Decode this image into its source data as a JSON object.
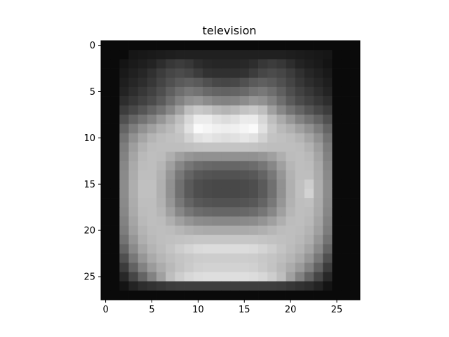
{
  "chart_data": {
    "type": "heatmap",
    "title": "television",
    "colormap": "gray",
    "xlabel": "",
    "ylabel": "",
    "x_ticks": [
      0,
      5,
      10,
      15,
      20,
      25
    ],
    "y_ticks": [
      0,
      5,
      10,
      15,
      20,
      25
    ],
    "x_tick_labels": [
      "0",
      "5",
      "10",
      "15",
      "20",
      "25"
    ],
    "y_tick_labels": [
      "0",
      "5",
      "10",
      "15",
      "20",
      "25"
    ],
    "grid": false,
    "rows": 28,
    "cols": 28,
    "values": [
      [
        10,
        10,
        10,
        10,
        10,
        10,
        10,
        10,
        10,
        10,
        10,
        10,
        10,
        10,
        10,
        10,
        10,
        10,
        10,
        10,
        10,
        10,
        10,
        10,
        10,
        10,
        10,
        10
      ],
      [
        10,
        10,
        10,
        22,
        24,
        26,
        28,
        30,
        32,
        32,
        32,
        32,
        32,
        32,
        32,
        32,
        32,
        32,
        32,
        32,
        30,
        28,
        26,
        24,
        22,
        10,
        10,
        10
      ],
      [
        10,
        10,
        20,
        26,
        30,
        35,
        45,
        55,
        60,
        55,
        45,
        40,
        38,
        38,
        38,
        40,
        45,
        55,
        60,
        55,
        45,
        35,
        30,
        26,
        20,
        10,
        10,
        10
      ],
      [
        10,
        10,
        25,
        32,
        38,
        48,
        60,
        70,
        75,
        70,
        60,
        50,
        48,
        48,
        48,
        50,
        60,
        70,
        75,
        70,
        60,
        48,
        38,
        32,
        25,
        10,
        10,
        10
      ],
      [
        10,
        10,
        30,
        38,
        45,
        55,
        68,
        80,
        90,
        95,
        90,
        80,
        72,
        70,
        72,
        80,
        90,
        95,
        90,
        80,
        68,
        55,
        45,
        38,
        30,
        10,
        10,
        10
      ],
      [
        10,
        10,
        35,
        45,
        55,
        65,
        78,
        95,
        110,
        120,
        115,
        105,
        100,
        98,
        100,
        105,
        115,
        120,
        110,
        95,
        78,
        65,
        55,
        45,
        35,
        10,
        10,
        10
      ],
      [
        10,
        10,
        45,
        55,
        65,
        75,
        90,
        110,
        130,
        145,
        150,
        140,
        132,
        130,
        132,
        140,
        150,
        145,
        130,
        110,
        90,
        75,
        65,
        55,
        45,
        10,
        10,
        10
      ],
      [
        10,
        10,
        60,
        72,
        85,
        100,
        115,
        135,
        160,
        190,
        200,
        195,
        185,
        180,
        185,
        195,
        200,
        190,
        160,
        135,
        115,
        100,
        85,
        72,
        60,
        10,
        10,
        10
      ],
      [
        10,
        10,
        80,
        100,
        115,
        130,
        150,
        170,
        190,
        215,
        235,
        235,
        225,
        220,
        225,
        235,
        235,
        215,
        190,
        170,
        150,
        130,
        115,
        100,
        80,
        10,
        10,
        10
      ],
      [
        10,
        10,
        100,
        125,
        145,
        160,
        175,
        185,
        200,
        225,
        250,
        245,
        240,
        238,
        240,
        245,
        250,
        225,
        200,
        185,
        175,
        160,
        145,
        125,
        100,
        10,
        10,
        10
      ],
      [
        10,
        10,
        115,
        145,
        165,
        180,
        188,
        192,
        195,
        210,
        225,
        230,
        225,
        222,
        225,
        230,
        225,
        210,
        195,
        192,
        188,
        180,
        165,
        145,
        115,
        10,
        10,
        10
      ],
      [
        10,
        10,
        125,
        158,
        178,
        188,
        190,
        190,
        190,
        192,
        195,
        196,
        196,
        196,
        196,
        196,
        195,
        192,
        190,
        190,
        190,
        188,
        178,
        158,
        125,
        10,
        10,
        10
      ],
      [
        10,
        10,
        130,
        165,
        185,
        190,
        188,
        175,
        160,
        150,
        145,
        145,
        145,
        145,
        145,
        145,
        145,
        150,
        160,
        175,
        188,
        190,
        185,
        165,
        130,
        10,
        10,
        10
      ],
      [
        10,
        10,
        135,
        170,
        188,
        190,
        182,
        160,
        135,
        118,
        108,
        104,
        102,
        102,
        102,
        104,
        108,
        118,
        135,
        160,
        182,
        190,
        188,
        170,
        135,
        10,
        10,
        10
      ],
      [
        10,
        10,
        138,
        172,
        190,
        190,
        178,
        150,
        120,
        100,
        88,
        84,
        82,
        82,
        82,
        84,
        88,
        100,
        120,
        150,
        178,
        190,
        190,
        172,
        138,
        10,
        10,
        10
      ],
      [
        10,
        10,
        140,
        174,
        192,
        192,
        176,
        145,
        112,
        90,
        78,
        74,
        72,
        72,
        72,
        74,
        78,
        90,
        112,
        145,
        176,
        192,
        205,
        174,
        140,
        10,
        10,
        10
      ],
      [
        10,
        10,
        140,
        174,
        192,
        192,
        176,
        145,
        112,
        90,
        78,
        74,
        72,
        72,
        72,
        74,
        78,
        90,
        112,
        145,
        176,
        192,
        210,
        174,
        140,
        10,
        10,
        10
      ],
      [
        10,
        10,
        138,
        172,
        190,
        190,
        178,
        150,
        120,
        100,
        88,
        84,
        82,
        82,
        82,
        84,
        88,
        100,
        120,
        150,
        178,
        190,
        192,
        172,
        138,
        10,
        10,
        10
      ],
      [
        10,
        10,
        135,
        170,
        188,
        190,
        182,
        160,
        135,
        118,
        108,
        104,
        102,
        102,
        102,
        104,
        108,
        118,
        135,
        160,
        182,
        190,
        188,
        170,
        135,
        10,
        10,
        10
      ],
      [
        10,
        10,
        130,
        165,
        185,
        190,
        188,
        175,
        160,
        148,
        140,
        138,
        136,
        136,
        136,
        138,
        140,
        148,
        160,
        175,
        188,
        190,
        185,
        165,
        130,
        10,
        10,
        10
      ],
      [
        10,
        10,
        125,
        160,
        180,
        188,
        190,
        188,
        182,
        176,
        172,
        170,
        170,
        170,
        170,
        170,
        172,
        176,
        182,
        188,
        190,
        188,
        180,
        160,
        125,
        10,
        10,
        10
      ],
      [
        10,
        10,
        115,
        150,
        175,
        185,
        190,
        192,
        194,
        196,
        198,
        198,
        198,
        198,
        198,
        198,
        198,
        196,
        194,
        192,
        190,
        185,
        175,
        150,
        115,
        10,
        10,
        10
      ],
      [
        10,
        10,
        100,
        138,
        165,
        180,
        188,
        196,
        205,
        212,
        218,
        220,
        220,
        220,
        220,
        220,
        218,
        212,
        205,
        196,
        188,
        180,
        165,
        138,
        100,
        10,
        10,
        10
      ],
      [
        10,
        10,
        80,
        120,
        150,
        170,
        182,
        190,
        196,
        200,
        204,
        205,
        205,
        205,
        205,
        205,
        204,
        200,
        196,
        190,
        182,
        170,
        150,
        120,
        80,
        10,
        10,
        10
      ],
      [
        10,
        10,
        60,
        98,
        130,
        155,
        172,
        185,
        195,
        202,
        208,
        210,
        210,
        210,
        210,
        210,
        208,
        202,
        195,
        185,
        172,
        155,
        130,
        98,
        60,
        10,
        10,
        10
      ],
      [
        10,
        10,
        40,
        70,
        100,
        130,
        160,
        190,
        205,
        215,
        220,
        222,
        222,
        222,
        222,
        222,
        220,
        215,
        205,
        190,
        160,
        130,
        100,
        70,
        40,
        10,
        10,
        10
      ],
      [
        10,
        10,
        20,
        35,
        45,
        50,
        55,
        60,
        62,
        62,
        62,
        62,
        62,
        62,
        62,
        62,
        62,
        62,
        62,
        60,
        55,
        50,
        45,
        35,
        20,
        10,
        10,
        10
      ],
      [
        10,
        10,
        10,
        10,
        10,
        10,
        10,
        10,
        10,
        10,
        10,
        10,
        10,
        10,
        10,
        10,
        10,
        10,
        10,
        10,
        10,
        10,
        10,
        10,
        10,
        10,
        10,
        10
      ]
    ]
  }
}
